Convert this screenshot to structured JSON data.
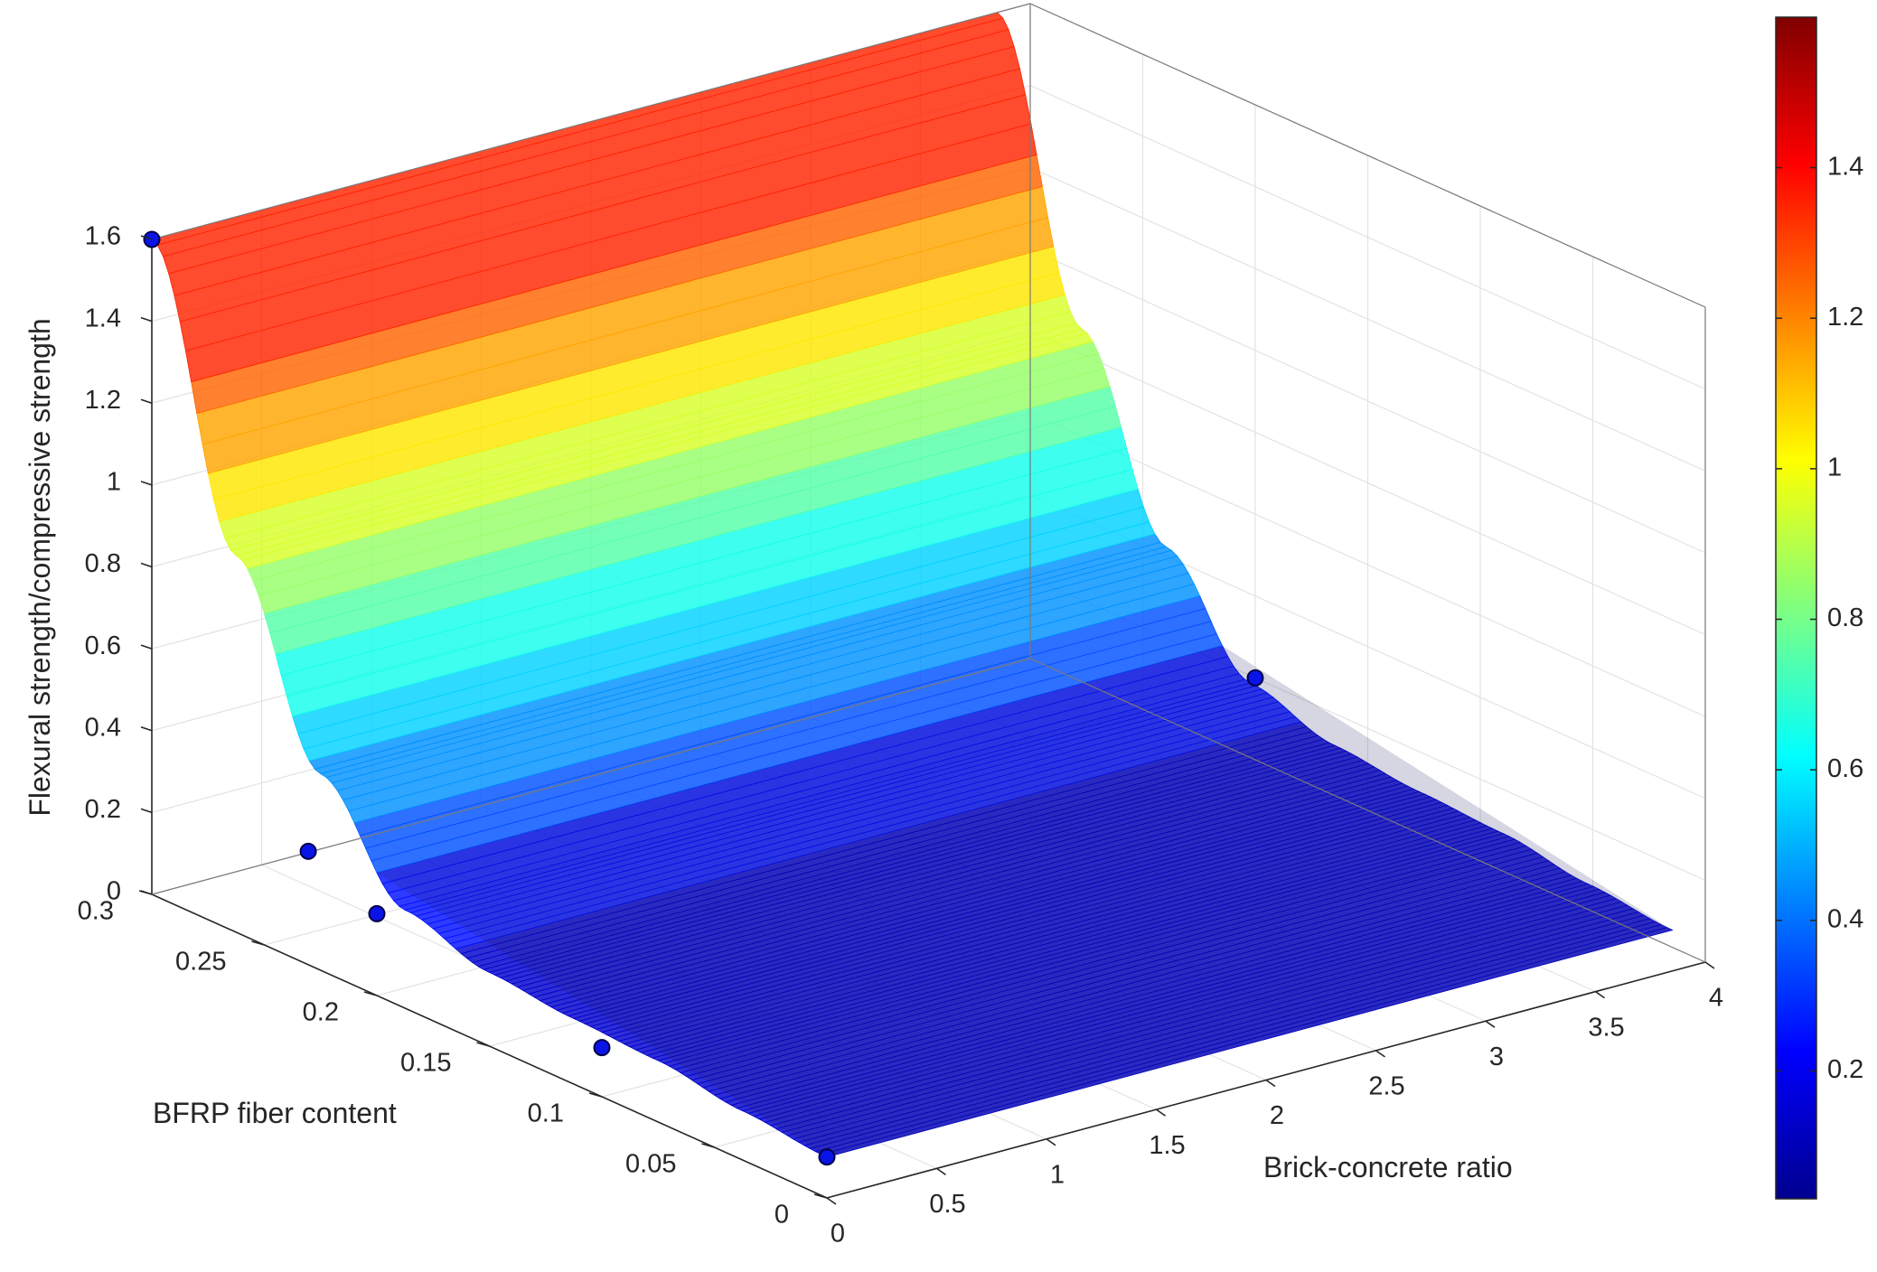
{
  "chart_data": {
    "type": "surface3d",
    "title": "",
    "xlabel": "Brick-concrete ratio",
    "ylabel": "BFRP fiber content",
    "zlabel": "Flexural strength/compressive strength",
    "x_ticks": [
      "0",
      "0.5",
      "1",
      "1.5",
      "2",
      "2.5",
      "3",
      "3.5",
      "4"
    ],
    "y_ticks": [
      "0",
      "0.05",
      "0.1",
      "0.15",
      "0.2",
      "0.25",
      "0.3"
    ],
    "z_ticks": [
      "0",
      "0.2",
      "0.4",
      "0.6",
      "0.8",
      "1",
      "1.2",
      "1.4",
      "1.6"
    ],
    "xlim": [
      0,
      4
    ],
    "ylim": [
      0,
      0.3
    ],
    "zlim": [
      0,
      1.6
    ],
    "grid": true,
    "surface": {
      "description_free_profile_y": [
        0.0,
        0.0375,
        0.075,
        0.1125,
        0.15,
        0.1875,
        0.225,
        0.2625,
        0.3
      ],
      "profile_z": [
        0.1,
        0.12,
        0.15,
        0.16,
        0.18,
        0.24,
        0.48,
        0.92,
        1.6
      ],
      "x_extent": [
        0,
        3.85
      ],
      "band_levels": [
        0.1,
        0.2,
        0.3,
        0.4,
        0.5,
        0.6,
        0.7,
        0.8,
        0.9,
        1.0,
        1.1,
        1.2,
        1.3,
        1.6
      ]
    },
    "points": [
      {
        "x": 0,
        "y": 0.3,
        "z": 1.6
      },
      {
        "x": 0,
        "y": 0.2,
        "z": 0.2
      },
      {
        "x": 0,
        "y": 0.1,
        "z": 0.12
      },
      {
        "x": 0,
        "y": 0.0,
        "z": 0.1
      },
      {
        "x": 0.2,
        "y": 0.25,
        "z": 0.2
      },
      {
        "x": 4,
        "y": 0.2,
        "z": 0.2
      }
    ],
    "colorbar": {
      "ticks": [
        "0.2",
        "0.4",
        "0.6",
        "0.8",
        "1",
        "1.2",
        "1.4"
      ],
      "range": [
        0.03,
        1.6
      ],
      "colormap": "jet"
    }
  }
}
